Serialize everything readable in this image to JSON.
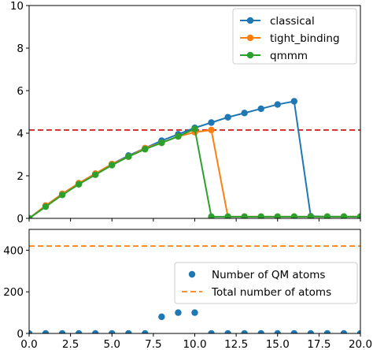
{
  "chart_data": [
    {
      "type": "line",
      "xlim": [
        0,
        20
      ],
      "ylim": [
        0,
        10
      ],
      "x_ticks": [
        "0.0",
        "2.5",
        "5.0",
        "7.5",
        "10.0",
        "12.5",
        "15.0",
        "17.5",
        "20.0"
      ],
      "y_ticks": [
        "0",
        "2",
        "4",
        "6",
        "8",
        "10"
      ],
      "x_tick_values": [
        0,
        2.5,
        5,
        7.5,
        10,
        12.5,
        15,
        17.5,
        20
      ],
      "y_tick_values": [
        0,
        2,
        4,
        6,
        8,
        10
      ],
      "show_x_tick_labels": false,
      "legend_position": "top-right",
      "series": [
        {
          "name": "classical",
          "color": "#1f77b4",
          "x": [
            0,
            1,
            2,
            3,
            4,
            5,
            6,
            7,
            8,
            9,
            10,
            11,
            12,
            13,
            14,
            15,
            16,
            17,
            18,
            19,
            20
          ],
          "y": [
            0.0,
            0.6,
            1.15,
            1.65,
            2.1,
            2.55,
            2.95,
            3.3,
            3.65,
            3.95,
            4.25,
            4.5,
            4.75,
            4.95,
            5.15,
            5.35,
            5.5,
            0.1,
            0.08,
            0.08,
            0.08
          ]
        },
        {
          "name": "tight_binding",
          "color": "#ff7f0e",
          "x": [
            0,
            1,
            2,
            3,
            4,
            5,
            6,
            7,
            8,
            9,
            10,
            11,
            12,
            13,
            14,
            15,
            16,
            17,
            18,
            19,
            20
          ],
          "y": [
            0.0,
            0.6,
            1.15,
            1.65,
            2.1,
            2.55,
            2.9,
            3.3,
            3.55,
            3.85,
            4.05,
            4.15,
            0.08,
            0.08,
            0.08,
            0.08,
            0.08,
            0.08,
            0.08,
            0.08,
            0.08
          ]
        },
        {
          "name": "qmmm",
          "color": "#2ca02c",
          "x": [
            0,
            1,
            2,
            3,
            4,
            5,
            6,
            7,
            8,
            9,
            10,
            11,
            12,
            13,
            14,
            15,
            16,
            17,
            18,
            19,
            20
          ],
          "y": [
            0.0,
            0.55,
            1.1,
            1.6,
            2.05,
            2.5,
            2.9,
            3.25,
            3.55,
            3.85,
            4.2,
            0.08,
            0.08,
            0.08,
            0.08,
            0.08,
            0.08,
            0.08,
            0.08,
            0.08,
            0.08
          ]
        }
      ],
      "reference_line": {
        "y": 4.15,
        "color": "#d62728",
        "style": "dashed"
      }
    },
    {
      "type": "scatter",
      "xlim": [
        0,
        20
      ],
      "ylim": [
        0,
        500
      ],
      "x_ticks": [
        "0.0",
        "2.5",
        "5.0",
        "7.5",
        "10.0",
        "12.5",
        "15.0",
        "17.5",
        "20.0"
      ],
      "y_ticks": [
        "0",
        "200",
        "400"
      ],
      "x_tick_values": [
        0,
        2.5,
        5,
        7.5,
        10,
        12.5,
        15,
        17.5,
        20
      ],
      "y_tick_values": [
        0,
        200,
        400
      ],
      "show_x_tick_labels": true,
      "legend_position": "center-right",
      "series": [
        {
          "name": "Number of QM atoms",
          "color": "#1f77b4",
          "x": [
            0,
            1,
            2,
            3,
            4,
            5,
            6,
            7,
            8,
            9,
            10,
            11,
            12,
            13,
            14,
            15,
            16,
            17,
            18,
            19,
            20
          ],
          "y": [
            0,
            0,
            0,
            0,
            0,
            0,
            0,
            0,
            80,
            100,
            100,
            0,
            0,
            0,
            0,
            0,
            0,
            0,
            0,
            0,
            0
          ]
        }
      ],
      "reference_line": {
        "name": "Total number of atoms",
        "y": 420,
        "color": "#ff7f0e",
        "style": "dashed"
      }
    }
  ]
}
